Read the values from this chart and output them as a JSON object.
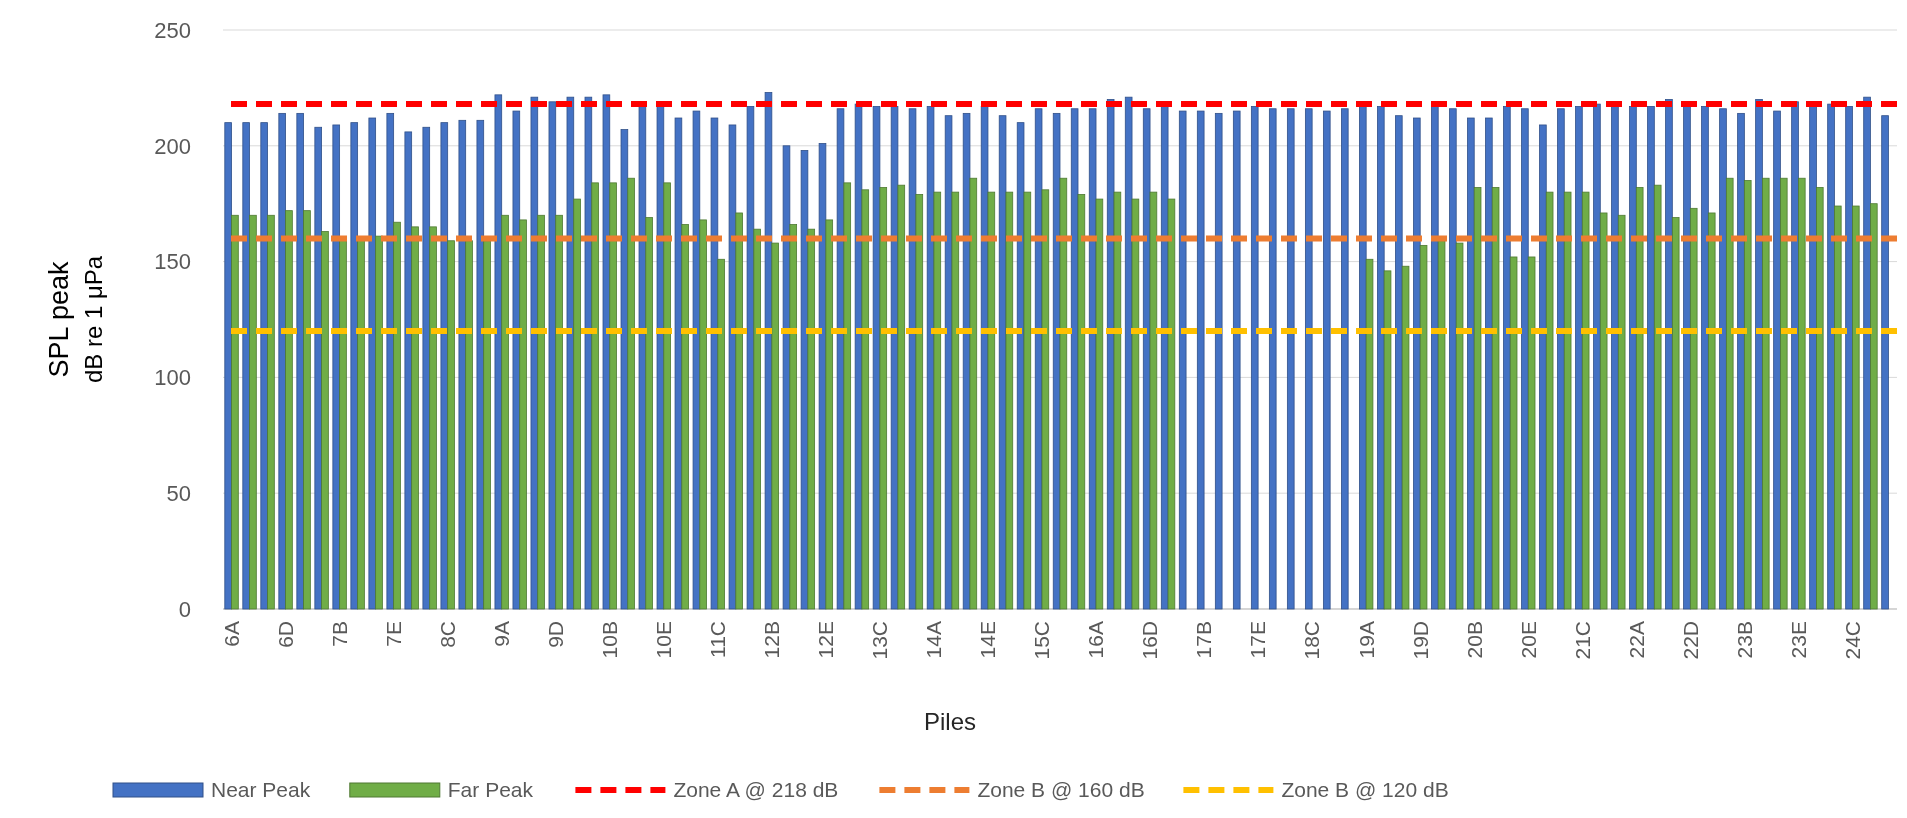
{
  "chart_data": {
    "type": "bar",
    "xlabel": "Piles",
    "ylabel": "SPL peak\ndB re 1 μPa",
    "categories": [
      "6A",
      null,
      null,
      "6D",
      null,
      null,
      "7B",
      null,
      null,
      "7E",
      null,
      null,
      "8C",
      null,
      null,
      "9A",
      null,
      null,
      "9D",
      null,
      null,
      "10B",
      null,
      null,
      "10E",
      null,
      null,
      "11C",
      null,
      null,
      "12B",
      null,
      null,
      "12E",
      null,
      null,
      "13C",
      null,
      null,
      "14A",
      null,
      null,
      "14E",
      null,
      null,
      "15C",
      null,
      null,
      "16A",
      null,
      null,
      "16D",
      null,
      null,
      "17B",
      null,
      null,
      "17E",
      null,
      null,
      "18C",
      null,
      null,
      "19A",
      null,
      null,
      "19D",
      null,
      null,
      "20B",
      null,
      null,
      "20E",
      null,
      null,
      "21C",
      null,
      null,
      "22A",
      null,
      null,
      "22D",
      null,
      null,
      "23B",
      null,
      null,
      "23E",
      null,
      null,
      "24C",
      null,
      null
    ],
    "series": [
      {
        "name": "Near Peak",
        "color": "#4472c4",
        "values": [
          210,
          210,
          210,
          214,
          214,
          208,
          209,
          210,
          212,
          214,
          206,
          208,
          210,
          211,
          211,
          222,
          215,
          221,
          219,
          221,
          221,
          222,
          207,
          218,
          218,
          212,
          215,
          212,
          209,
          217,
          223,
          200,
          198,
          201,
          216,
          218,
          217,
          217,
          216,
          217,
          213,
          214,
          217,
          213,
          210,
          216,
          214,
          216,
          216,
          220,
          221,
          216,
          217,
          215,
          215,
          214,
          215,
          217,
          216,
          216,
          216,
          215,
          216,
          217,
          217,
          213,
          212,
          217,
          216,
          212,
          212,
          217,
          216,
          209,
          216,
          217,
          218,
          217,
          217,
          217,
          220,
          217,
          217,
          216,
          214,
          220,
          215,
          219,
          217,
          218,
          217,
          221,
          213
        ]
      },
      {
        "name": "Far Peak",
        "color": "#70ad47",
        "values": [
          170,
          170,
          170,
          172,
          172,
          163,
          160,
          160,
          161,
          167,
          165,
          165,
          159,
          159,
          159,
          170,
          168,
          170,
          170,
          177,
          184,
          184,
          186,
          169,
          184,
          166,
          168,
          151,
          171,
          164,
          158,
          166,
          164,
          168,
          184,
          181,
          182,
          183,
          179,
          180,
          180,
          186,
          180,
          180,
          180,
          181,
          186,
          179,
          177,
          180,
          177,
          180,
          177,
          null,
          null,
          null,
          null,
          null,
          null,
          null,
          null,
          null,
          null,
          151,
          146,
          148,
          157,
          159,
          158,
          182,
          182,
          152,
          152,
          180,
          180,
          180,
          171,
          170,
          182,
          183,
          169,
          173,
          171,
          186,
          185,
          186,
          186,
          186,
          182,
          174,
          174,
          175,
          null
        ]
      }
    ],
    "ref_lines": [
      {
        "axis": "y",
        "value": 218,
        "label": "Zone A @ 218 dB",
        "color": "#ff0000",
        "line_style": "dashed"
      },
      {
        "axis": "y",
        "value": 160,
        "label": "Zone B @ 160 dB",
        "color": "#ed7d31",
        "line_style": "dashed"
      },
      {
        "axis": "y",
        "value": 120,
        "label": "Zone B @ 120 dB",
        "color": "#ffc000",
        "line_style": "dashed"
      }
    ],
    "ylim": [
      0,
      250
    ],
    "yticks": [
      0,
      50,
      100,
      150,
      200,
      250
    ],
    "grid": "y",
    "legend": "bottom"
  }
}
